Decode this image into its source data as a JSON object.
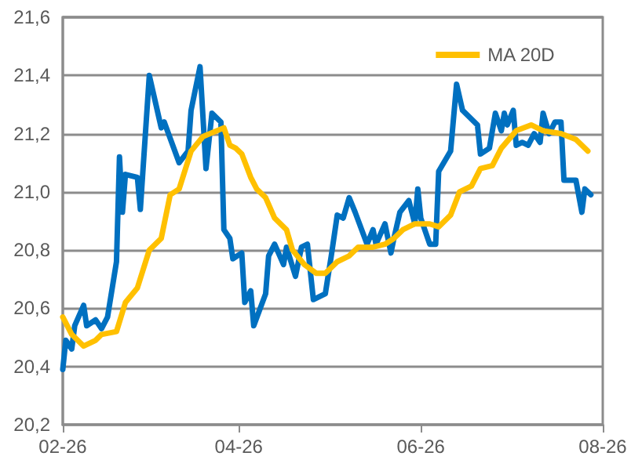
{
  "chart_data": {
    "type": "line",
    "xlim": [
      "2026-02-01",
      "2026-08-01"
    ],
    "xticks": [
      {
        "value": "2026-02-01",
        "label": "02-26"
      },
      {
        "value": "2026-04-01",
        "label": "04-26"
      },
      {
        "value": "2026-06-01",
        "label": "06-26"
      },
      {
        "value": "2026-08-01",
        "label": "08-26"
      }
    ],
    "ylim": [
      20.2,
      21.6
    ],
    "yticks": [
      {
        "value": 20.2,
        "label": "20,2"
      },
      {
        "value": 20.4,
        "label": "20,4"
      },
      {
        "value": 20.6,
        "label": "20,6"
      },
      {
        "value": 20.8,
        "label": "20,8"
      },
      {
        "value": 21.0,
        "label": "21,0"
      },
      {
        "value": 21.2,
        "label": "21,2"
      },
      {
        "value": 21.4,
        "label": "21,4"
      },
      {
        "value": 21.6,
        "label": "21,6"
      }
    ],
    "grid": "y",
    "legend": "top right",
    "marker": "none",
    "line_style": "solid",
    "series": [
      {
        "color": "#0070c0",
        "x": [
          "2026-02-01",
          "2026-02-02",
          "2026-02-04",
          "2026-02-05",
          "2026-02-08",
          "2026-02-09",
          "2026-02-12",
          "2026-02-14",
          "2026-02-16",
          "2026-02-19",
          "2026-02-20",
          "2026-02-21",
          "2026-02-22",
          "2026-02-26",
          "2026-02-27",
          "2026-03-02",
          "2026-03-06",
          "2026-03-07",
          "2026-03-12",
          "2026-03-15",
          "2026-03-16",
          "2026-03-19",
          "2026-03-21",
          "2026-03-23",
          "2026-03-26",
          "2026-03-27",
          "2026-03-29",
          "2026-03-30",
          "2026-04-02",
          "2026-04-03",
          "2026-04-05",
          "2026-04-06",
          "2026-04-10",
          "2026-04-11",
          "2026-04-13",
          "2026-04-16",
          "2026-04-17",
          "2026-04-20",
          "2026-04-22",
          "2026-04-24",
          "2026-04-26",
          "2026-04-30",
          "2026-05-02",
          "2026-05-04",
          "2026-05-06",
          "2026-05-08",
          "2026-05-10",
          "2026-05-14",
          "2026-05-16",
          "2026-05-17",
          "2026-05-20",
          "2026-05-22",
          "2026-05-23",
          "2026-05-25",
          "2026-05-28",
          "2026-05-30",
          "2026-05-31",
          "2026-06-01",
          "2026-06-04",
          "2026-06-06",
          "2026-06-07",
          "2026-06-11",
          "2026-06-13",
          "2026-06-15",
          "2026-06-20",
          "2026-06-21",
          "2026-06-24",
          "2026-06-26",
          "2026-06-28",
          "2026-06-29",
          "2026-06-30",
          "2026-07-02",
          "2026-07-03",
          "2026-07-05",
          "2026-07-07",
          "2026-07-09",
          "2026-07-11",
          "2026-07-12",
          "2026-07-14",
          "2026-07-16",
          "2026-07-18",
          "2026-07-19",
          "2026-07-23",
          "2026-07-25",
          "2026-07-26",
          "2026-07-28"
        ],
        "values": [
          20.39,
          20.49,
          20.46,
          20.54,
          20.61,
          20.54,
          20.56,
          20.53,
          20.57,
          20.76,
          21.12,
          20.93,
          21.06,
          21.05,
          20.94,
          21.4,
          21.22,
          21.24,
          21.1,
          21.14,
          21.28,
          21.43,
          21.08,
          21.27,
          21.24,
          20.87,
          20.84,
          20.77,
          20.79,
          20.62,
          20.66,
          20.54,
          20.65,
          20.78,
          20.82,
          20.75,
          20.81,
          20.71,
          20.81,
          20.82,
          20.63,
          20.65,
          20.78,
          20.92,
          20.91,
          20.98,
          20.93,
          20.82,
          20.87,
          20.82,
          20.89,
          20.79,
          20.84,
          20.93,
          20.97,
          20.89,
          21.01,
          20.91,
          20.82,
          20.82,
          21.07,
          21.14,
          21.37,
          21.28,
          21.23,
          21.13,
          21.15,
          21.27,
          21.21,
          21.27,
          21.23,
          21.28,
          21.16,
          21.17,
          21.16,
          21.2,
          21.17,
          21.27,
          21.2,
          21.24,
          21.24,
          21.04,
          21.04,
          20.93,
          21.01,
          20.99
        ]
      },
      {
        "name": "MA 20D",
        "color": "#ffc000",
        "x": [
          "2026-02-01",
          "2026-02-04",
          "2026-02-08",
          "2026-02-12",
          "2026-02-14",
          "2026-02-19",
          "2026-02-22",
          "2026-02-26",
          "2026-03-02",
          "2026-03-06",
          "2026-03-09",
          "2026-03-12",
          "2026-03-16",
          "2026-03-20",
          "2026-03-27",
          "2026-03-29",
          "2026-03-31",
          "2026-04-02",
          "2026-04-05",
          "2026-04-07",
          "2026-04-10",
          "2026-04-13",
          "2026-04-17",
          "2026-04-19",
          "2026-04-23",
          "2026-04-27",
          "2026-04-30",
          "2026-05-04",
          "2026-05-08",
          "2026-05-11",
          "2026-05-16",
          "2026-05-20",
          "2026-05-23",
          "2026-05-26",
          "2026-05-30",
          "2026-06-04",
          "2026-06-07",
          "2026-06-11",
          "2026-06-14",
          "2026-06-18",
          "2026-06-21",
          "2026-06-25",
          "2026-06-28",
          "2026-07-03",
          "2026-07-08",
          "2026-07-12",
          "2026-07-18",
          "2026-07-23",
          "2026-07-27"
        ],
        "values": [
          20.57,
          20.51,
          20.47,
          20.49,
          20.51,
          20.52,
          20.62,
          20.67,
          20.8,
          20.84,
          20.99,
          21.01,
          21.14,
          21.19,
          21.22,
          21.16,
          21.15,
          21.13,
          21.05,
          21.01,
          20.98,
          20.91,
          20.87,
          20.8,
          20.75,
          20.72,
          20.72,
          20.76,
          20.78,
          20.81,
          20.81,
          20.82,
          20.84,
          20.87,
          20.89,
          20.89,
          20.88,
          20.92,
          21.0,
          21.02,
          21.08,
          21.09,
          21.15,
          21.21,
          21.23,
          21.21,
          21.2,
          21.18,
          21.14
        ]
      }
    ]
  }
}
